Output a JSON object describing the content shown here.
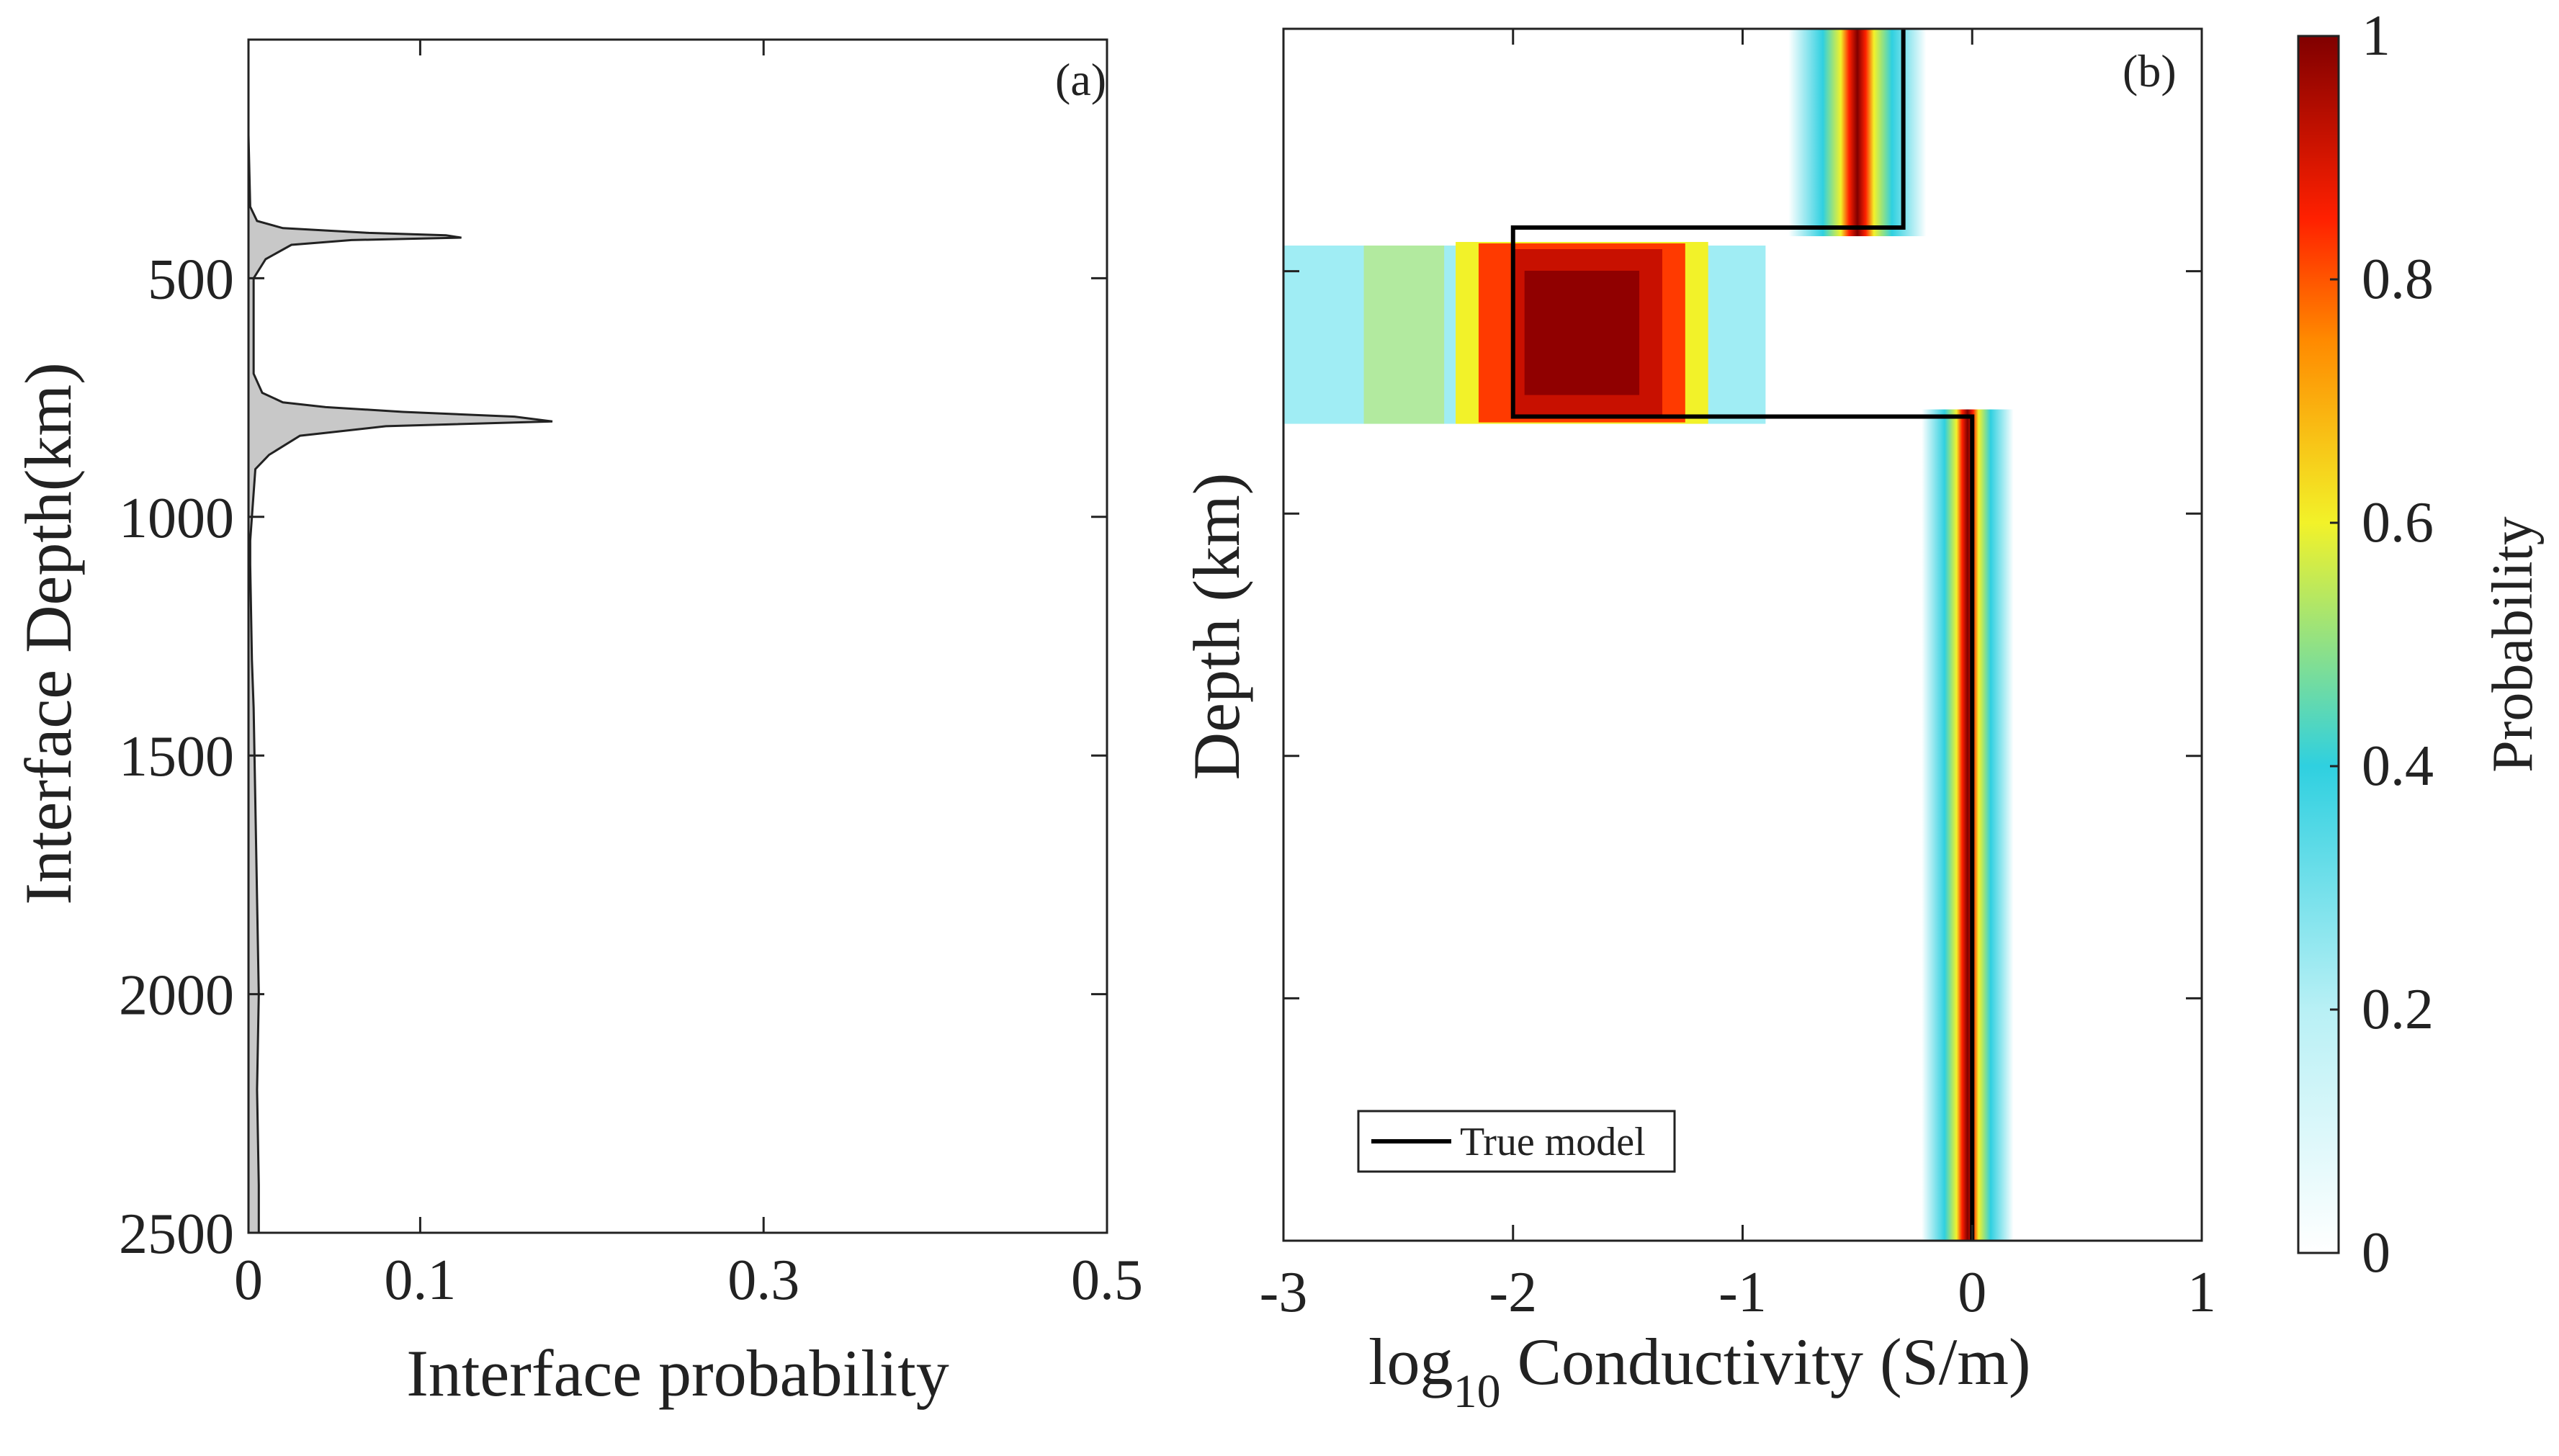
{
  "chart_data": [
    {
      "type": "area",
      "panel_label": "(a)",
      "xlabel": "Interface probability",
      "ylabel": "Interface Depth(km)",
      "xlim": [
        0,
        0.5
      ],
      "ylim": [
        2500,
        0
      ],
      "xticks": [
        0,
        0.1,
        0.3,
        0.5
      ],
      "xtick_labels": [
        "0",
        "0.1",
        "0.3",
        "0.5"
      ],
      "yticks": [
        500,
        1000,
        1500,
        2000,
        2500
      ],
      "ytick_labels": [
        "500",
        "1000",
        "1500",
        "2000",
        "2500"
      ],
      "fill_color": "#c8c8c8",
      "series": [
        {
          "name": "interface probability",
          "depth": [
            0,
            200,
            350,
            380,
            395,
            405,
            410,
            415,
            420,
            430,
            460,
            500,
            700,
            740,
            760,
            770,
            780,
            790,
            800,
            810,
            830,
            870,
            900,
            1000,
            1050,
            1100,
            1300,
            1400,
            1600,
            1800,
            2000,
            2200,
            2400,
            2500
          ],
          "probability": [
            0,
            0,
            0.001,
            0.005,
            0.02,
            0.07,
            0.115,
            0.124,
            0.06,
            0.025,
            0.01,
            0.003,
            0.003,
            0.008,
            0.02,
            0.045,
            0.09,
            0.155,
            0.177,
            0.08,
            0.03,
            0.012,
            0.004,
            0.002,
            0.001,
            0.001,
            0.002,
            0.003,
            0.004,
            0.005,
            0.006,
            0.005,
            0.006,
            0.006
          ]
        }
      ]
    },
    {
      "type": "heatmap",
      "panel_label": "(b)",
      "xlabel_main": "log",
      "xlabel_sub": "10",
      "xlabel_rest": " Conductivity (S/m)",
      "ylabel": "Depth (km)",
      "xlim": [
        -3,
        1
      ],
      "ylim": [
        2500,
        0
      ],
      "xticks": [
        -3,
        -2,
        -1,
        0,
        1
      ],
      "xtick_labels": [
        "-3",
        "-2",
        "-1",
        "0",
        "1"
      ],
      "yticks": [
        500,
        1000,
        1500,
        2000
      ],
      "colorbar": {
        "label": "Probability",
        "range": [
          0,
          1
        ],
        "ticks": [
          0,
          0.2,
          0.4,
          0.6,
          0.8,
          1
        ],
        "tick_labels": [
          "0",
          "0.2",
          "0.4",
          "0.6",
          "0.8",
          "1"
        ]
      },
      "legend": {
        "entries": [
          "True model"
        ],
        "location": "lower-left"
      },
      "true_model": {
        "log10_conductivity": [
          -0.3,
          -0.3,
          -2.0,
          -2.0,
          0.0,
          0.0
        ],
        "depth": [
          0,
          410,
          410,
          800,
          800,
          2500
        ]
      },
      "probability_regions": [
        {
          "depth_range": [
            0,
            410
          ],
          "log10_conductivity": -0.5,
          "peak": 1.0,
          "width": 0.12,
          "halo": 0.35
        },
        {
          "depth_range": [
            410,
            800
          ],
          "log10_conductivity_range": [
            -2.0,
            -1.3
          ],
          "peak": 1.0,
          "halo_range": [
            -3.0,
            -0.9
          ],
          "halo": 0.35
        },
        {
          "depth_range": [
            800,
            2500
          ],
          "log10_conductivity": -0.02,
          "peak": 1.0,
          "width": 0.1,
          "halo": 0.3
        }
      ]
    }
  ]
}
